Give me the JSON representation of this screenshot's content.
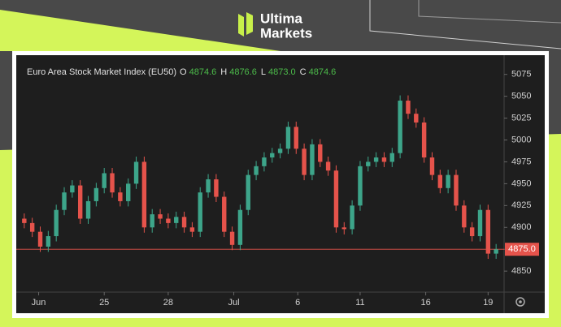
{
  "brand": {
    "line1": "Ultima",
    "line2": "Markets"
  },
  "chart_data": {
    "type": "candlestick",
    "title": "Euro Area Stock Market Index (EU50)",
    "ohlc_header": [
      {
        "key": "O",
        "value": "4874.6"
      },
      {
        "key": "H",
        "value": "4876.6"
      },
      {
        "key": "L",
        "value": "4873.0"
      },
      {
        "key": "C",
        "value": "4874.6"
      }
    ],
    "x": [
      1,
      2,
      3,
      4,
      5,
      6,
      7,
      8,
      9,
      10,
      11,
      12,
      13,
      14,
      15,
      16,
      17,
      18,
      19,
      20,
      21,
      22,
      23,
      24,
      25,
      26,
      27,
      28,
      29,
      30,
      31,
      32,
      33,
      34,
      35,
      36,
      37,
      38,
      39,
      40,
      41,
      42,
      43,
      44,
      45,
      46,
      47,
      48,
      49,
      50,
      51,
      52,
      53,
      54,
      55,
      56,
      57,
      58,
      59,
      60
    ],
    "open": [
      4910,
      4905,
      4895,
      4878,
      4890,
      4920,
      4940,
      4948,
      4910,
      4930,
      4945,
      4962,
      4940,
      4930,
      4950,
      4975,
      4900,
      4915,
      4910,
      4905,
      4912,
      4900,
      4895,
      4940,
      4955,
      4935,
      4895,
      4880,
      4920,
      4960,
      4970,
      4980,
      4985,
      4990,
      5015,
      4990,
      4960,
      4995,
      4975,
      4965,
      4900,
      4898,
      4925,
      4970,
      4975,
      4980,
      4975,
      4985,
      5045,
      5030,
      5020,
      4980,
      4960,
      4945,
      4960,
      4925,
      4900,
      4890,
      4920,
      4870
    ],
    "high": [
      4916,
      4911,
      4901,
      4896,
      4926,
      4946,
      4954,
      4954,
      4936,
      4951,
      4968,
      4968,
      4946,
      4956,
      4981,
      4981,
      4921,
      4921,
      4916,
      4918,
      4918,
      4906,
      4946,
      4961,
      4961,
      4941,
      4901,
      4926,
      4966,
      4976,
      4986,
      4991,
      4996,
      5021,
      5021,
      4996,
      5001,
      5001,
      4981,
      4971,
      4906,
      4931,
      4976,
      4981,
      4986,
      4986,
      4991,
      5051,
      5051,
      5036,
      5026,
      4986,
      4966,
      4966,
      4966,
      4931,
      4906,
      4926,
      4926,
      4881
    ],
    "low": [
      4899,
      4889,
      4872,
      4872,
      4884,
      4914,
      4934,
      4904,
      4904,
      4924,
      4939,
      4934,
      4924,
      4924,
      4944,
      4894,
      4894,
      4904,
      4899,
      4899,
      4894,
      4889,
      4889,
      4934,
      4929,
      4889,
      4874,
      4874,
      4914,
      4954,
      4964,
      4974,
      4979,
      4984,
      4984,
      4954,
      4954,
      4969,
      4959,
      4894,
      4892,
      4892,
      4919,
      4964,
      4969,
      4969,
      4969,
      4979,
      5024,
      5014,
      4974,
      4954,
      4939,
      4939,
      4919,
      4894,
      4884,
      4884,
      4864,
      4864
    ],
    "close": [
      4905,
      4895,
      4878,
      4890,
      4920,
      4940,
      4948,
      4910,
      4930,
      4945,
      4962,
      4940,
      4930,
      4950,
      4975,
      4900,
      4915,
      4910,
      4905,
      4912,
      4900,
      4895,
      4940,
      4955,
      4935,
      4895,
      4880,
      4920,
      4960,
      4970,
      4980,
      4985,
      4990,
      5015,
      4990,
      4960,
      4995,
      4975,
      4965,
      4900,
      4898,
      4925,
      4970,
      4975,
      4980,
      4975,
      4985,
      5045,
      5030,
      5020,
      4980,
      4960,
      4945,
      4960,
      4925,
      4900,
      4890,
      4920,
      4870,
      4875
    ],
    "up_color": "#3da58a",
    "down_color": "#e5534b",
    "xlim": [
      0,
      61
    ],
    "xticks": [
      {
        "value": 2.8,
        "label": "Jun"
      },
      {
        "value": 11,
        "label": "25"
      },
      {
        "value": 19,
        "label": "28"
      },
      {
        "value": 27.2,
        "label": "Jul"
      },
      {
        "value": 35.2,
        "label": "6"
      },
      {
        "value": 43,
        "label": "11"
      },
      {
        "value": 51.2,
        "label": "16"
      },
      {
        "value": 59,
        "label": "19"
      }
    ],
    "ylim": [
      4826,
      5097
    ],
    "yticks": [
      4850,
      4875,
      4900,
      4925,
      4950,
      4975,
      5000,
      5025,
      5050,
      5075
    ],
    "price_line": {
      "value": 4875,
      "label": "4875.0"
    },
    "price_line_color": "#e5534b"
  }
}
